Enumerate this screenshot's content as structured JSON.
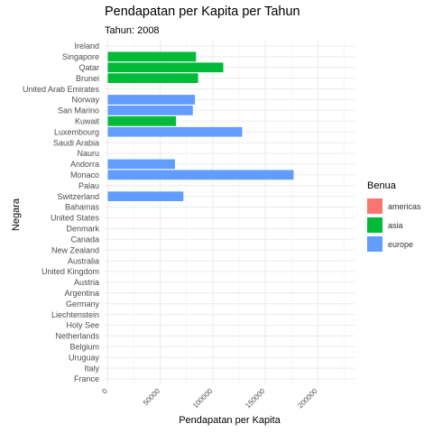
{
  "chart_data": {
    "type": "bar",
    "orientation": "horizontal",
    "title": "Pendapatan per Kapita per Tahun",
    "subtitle": "Tahun: 2008",
    "xlabel": "Pendapatan per Kapita",
    "ylabel": "Negara",
    "xlim": [
      -3000,
      235000
    ],
    "x_ticks": [
      0,
      50000,
      100000,
      150000,
      200000
    ],
    "x_tick_labels": [
      "0",
      "50000",
      "100000",
      "150000",
      "200000"
    ],
    "grid": true,
    "legend_position": "right",
    "legend_title": "Benua",
    "colors": {
      "americas": "#F8766D",
      "asia": "#00BA38",
      "europe": "#619CFF"
    },
    "legend": [
      {
        "key": "americas",
        "label": "americas"
      },
      {
        "key": "asia",
        "label": "asia"
      },
      {
        "key": "europe",
        "label": "europe"
      }
    ],
    "categories": [
      "Ireland",
      "Singapore",
      "Qatar",
      "Brunei",
      "United Arab Emirates",
      "Norway",
      "San Marino",
      "Kuwait",
      "Luxembourg",
      "Saudi Arabia",
      "Nauru",
      "Andorra",
      "Monaco",
      "Palau",
      "Switzerland",
      "Bahamas",
      "United States",
      "Denmark",
      "Canada",
      "New Zealand",
      "Australia",
      "United Kingdom",
      "Austria",
      "Argentina",
      "Germany",
      "Liechtenstein",
      "Holy See",
      "Netherlands",
      "Belgium",
      "Uruguay",
      "Italy",
      "France"
    ],
    "bars": [
      {
        "country": "Singapore",
        "value": 84000,
        "continent": "asia"
      },
      {
        "country": "Qatar",
        "value": 110000,
        "continent": "asia"
      },
      {
        "country": "Brunei",
        "value": 86000,
        "continent": "asia"
      },
      {
        "country": "Norway",
        "value": 83000,
        "continent": "europe"
      },
      {
        "country": "San Marino",
        "value": 81000,
        "continent": "europe"
      },
      {
        "country": "Kuwait",
        "value": 65000,
        "continent": "asia"
      },
      {
        "country": "Luxembourg",
        "value": 128000,
        "continent": "europe"
      },
      {
        "country": "Andorra",
        "value": 64000,
        "continent": "europe"
      },
      {
        "country": "Monaco",
        "value": 177000,
        "continent": "europe"
      },
      {
        "country": "Switzerland",
        "value": 72000,
        "continent": "europe"
      }
    ]
  }
}
